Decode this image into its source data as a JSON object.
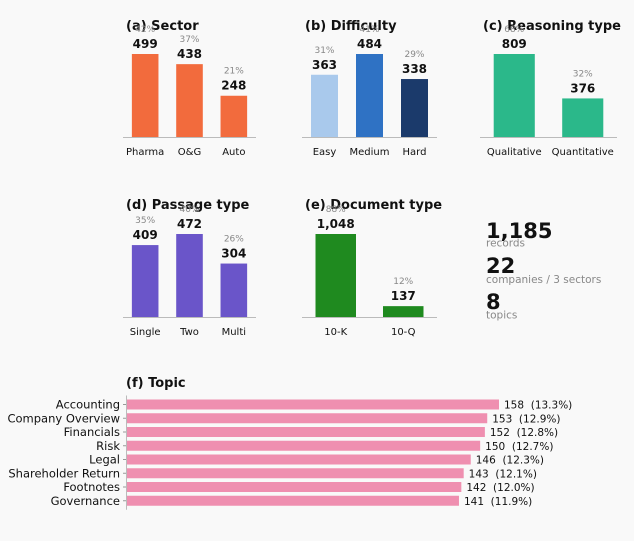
{
  "chart_data": [
    {
      "id": "sector",
      "type": "bar",
      "title": "(a) Sector",
      "categories": [
        "Pharma",
        "O&G",
        "Auto"
      ],
      "values": [
        499,
        438,
        248
      ],
      "percent_labels": [
        "42%",
        "37%",
        "21%"
      ],
      "value_labels": [
        "499",
        "438",
        "248"
      ],
      "colors": [
        "#f26b3d",
        "#f26b3d",
        "#f26b3d"
      ]
    },
    {
      "id": "difficulty",
      "type": "bar",
      "title": "(b) Difficulty",
      "categories": [
        "Easy",
        "Medium",
        "Hard"
      ],
      "values": [
        363,
        484,
        338
      ],
      "percent_labels": [
        "31%",
        "41%",
        "29%"
      ],
      "value_labels": [
        "363",
        "484",
        "338"
      ],
      "colors": [
        "#a9c9ec",
        "#2f72c4",
        "#1b3a6b"
      ]
    },
    {
      "id": "reasoning",
      "type": "bar",
      "title": "(c) Reasoning type",
      "categories": [
        "Qualitative",
        "Quantitative"
      ],
      "values": [
        809,
        376
      ],
      "percent_labels": [
        "68%",
        "32%"
      ],
      "value_labels": [
        "809",
        "376"
      ],
      "colors": [
        "#2bb88a",
        "#2bb88a"
      ]
    },
    {
      "id": "passage",
      "type": "bar",
      "title": "(d) Passage type",
      "categories": [
        "Single",
        "Two",
        "Multi"
      ],
      "values": [
        409,
        472,
        304
      ],
      "percent_labels": [
        "35%",
        "40%",
        "26%"
      ],
      "value_labels": [
        "409",
        "472",
        "304"
      ],
      "colors": [
        "#6a55c9",
        "#6a55c9",
        "#6a55c9"
      ]
    },
    {
      "id": "document",
      "type": "bar",
      "title": "(e) Document type",
      "categories": [
        "10-K",
        "10-Q"
      ],
      "values": [
        1048,
        137
      ],
      "percent_labels": [
        "88%",
        "12%"
      ],
      "value_labels": [
        "1,048",
        "137"
      ],
      "colors": [
        "#1f8a1f",
        "#1f8a1f"
      ]
    },
    {
      "id": "topic",
      "type": "bar",
      "orientation": "horizontal",
      "title": "(f) Topic",
      "categories": [
        "Accounting",
        "Company Overview",
        "Financials",
        "Risk",
        "Legal",
        "Shareholder Return",
        "Footnotes",
        "Governance"
      ],
      "values": [
        158,
        153,
        152,
        150,
        146,
        143,
        142,
        141
      ],
      "value_labels": [
        "158  (13.3%)",
        "153  (12.9%)",
        "152  (12.8%)",
        "150  (12.7%)",
        "146  (12.3%)",
        "143  (12.1%)",
        "142  (12.0%)",
        "141  (11.9%)"
      ],
      "colors": [
        "#ef8fb0"
      ]
    }
  ],
  "summary": [
    {
      "value": "1,185",
      "label": "records"
    },
    {
      "value": "22",
      "label": "companies / 3 sectors"
    },
    {
      "value": "8",
      "label": "topics"
    }
  ]
}
